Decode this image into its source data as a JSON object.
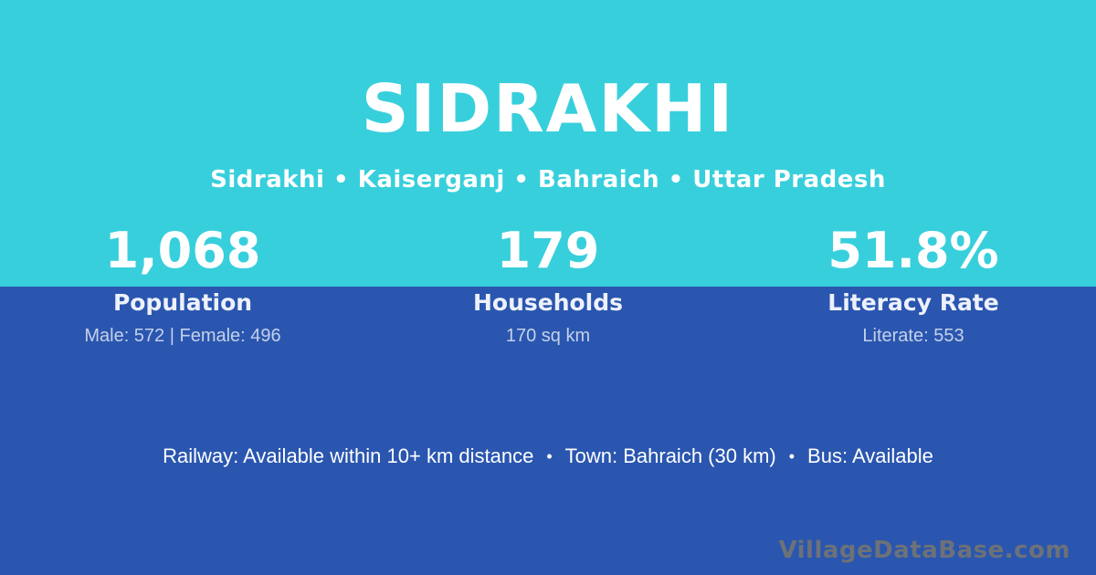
{
  "colors": {
    "top_background": "#38cfdc",
    "bottom_background": "#2a56af",
    "text_primary": "#ffffff",
    "text_muted": "rgba(255,255,255,0.72)",
    "watermark": "#6d7178"
  },
  "header": {
    "title": "SIDRAKHI",
    "subtitle": "Sidrakhi • Kaiserganj • Bahraich • Uttar Pradesh"
  },
  "stats": [
    {
      "value": "1,068",
      "label": "Population",
      "detail": "Male: 572 | Female: 496"
    },
    {
      "value": "179",
      "label": "Households",
      "detail": "170 sq km"
    },
    {
      "value": "51.8%",
      "label": "Literacy Rate",
      "detail": "Literate: 553"
    }
  ],
  "footer": {
    "separator": "•",
    "segments": [
      "Railway: Available within 10+ km distance",
      "Town: Bahraich (30 km)",
      "Bus: Available"
    ],
    "watermark": "VillageDataBase.com"
  }
}
